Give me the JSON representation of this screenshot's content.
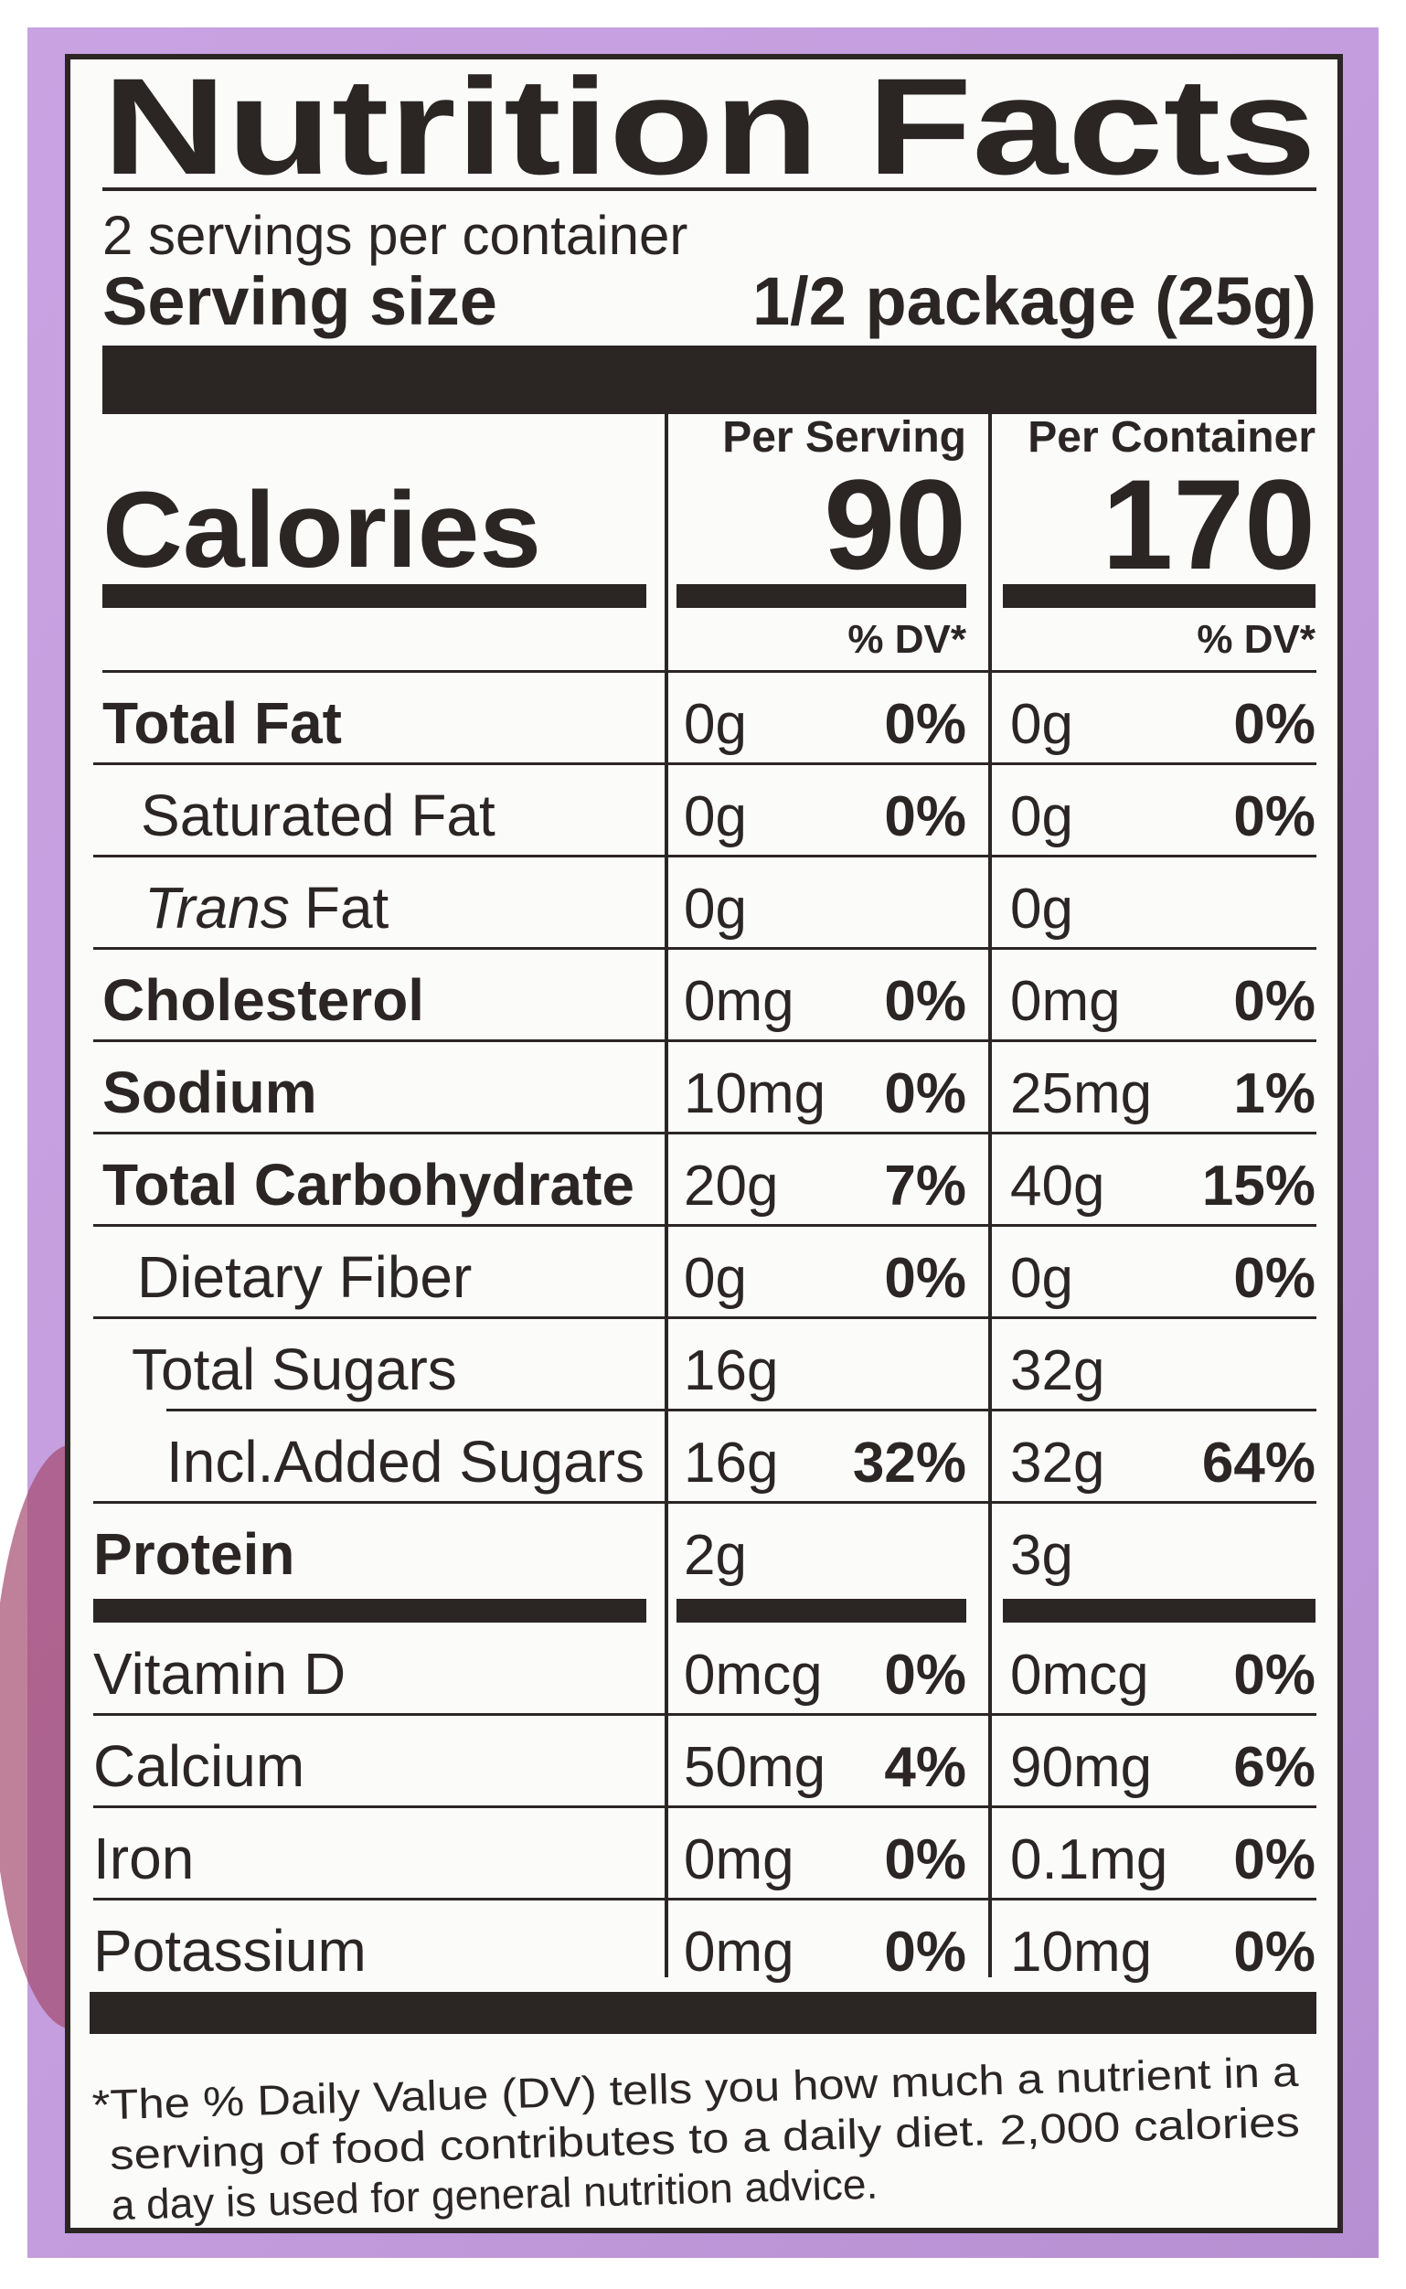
{
  "title": "Nutrition Facts",
  "servings": "2 servings per container",
  "serving_size": {
    "label": "Serving size",
    "value": "1/2 package (25g)"
  },
  "columns": [
    {
      "heading": "Per Serving",
      "calories": "90",
      "dv_heading": "% DV*"
    },
    {
      "heading": "Per Container",
      "calories": "170",
      "dv_heading": "% DV*"
    }
  ],
  "calories_label": "Calories",
  "rows": [
    {
      "name": "Total Fat",
      "serving": [
        "0g",
        "0%"
      ],
      "container": [
        "0g",
        "0%"
      ]
    },
    {
      "name": "Saturated Fat",
      "serving": [
        "0g",
        "0%"
      ],
      "container": [
        "0g",
        "0%"
      ]
    },
    {
      "name_italic": "Trans",
      "name": "Fat",
      "serving": [
        "0g"
      ],
      "container": [
        "0g"
      ]
    },
    {
      "name": "Cholesterol",
      "serving": [
        "0mg",
        "0%"
      ],
      "container": [
        "0mg",
        "0%"
      ]
    },
    {
      "name": "Sodium",
      "serving": [
        "10mg",
        "0%"
      ],
      "container": [
        "25mg",
        "1%"
      ]
    },
    {
      "name": "Total Carbohydrate",
      "serving": [
        "20g",
        "7%"
      ],
      "container": [
        "40g",
        "15%"
      ]
    },
    {
      "name": "Dietary Fiber",
      "serving": [
        "0g",
        "0%"
      ],
      "container": [
        "0g",
        "0%"
      ]
    },
    {
      "name": "Total Sugars",
      "serving": [
        "16g"
      ],
      "container": [
        "32g"
      ]
    },
    {
      "name": "Incl.Added Sugars",
      "serving": [
        "16g",
        "32%"
      ],
      "container": [
        "32g",
        "64%"
      ]
    },
    {
      "name": "Protein",
      "serving": [
        "2g"
      ],
      "container": [
        "3g"
      ]
    }
  ],
  "micronutrients": [
    {
      "name": "Vitamin D",
      "serving": [
        "0mcg",
        "0%"
      ],
      "container": [
        "0mcg",
        "0%"
      ]
    },
    {
      "name": "Calcium",
      "serving": [
        "50mg",
        "4%"
      ],
      "container": [
        "90mg",
        "6%"
      ]
    },
    {
      "name": "Iron",
      "serving": [
        "0mg",
        "0%"
      ],
      "container": [
        "0.1mg",
        "0%"
      ]
    },
    {
      "name": "Potassium",
      "serving": [
        "0mg",
        "0%"
      ],
      "container": [
        "10mg",
        "0%"
      ]
    }
  ],
  "footnote": [
    "*The % Daily Value (DV) tells you how much a nutrient in a",
    "serving of food contributes to a daily diet. 2,000 calories",
    "a day is used for general nutrition advice."
  ]
}
